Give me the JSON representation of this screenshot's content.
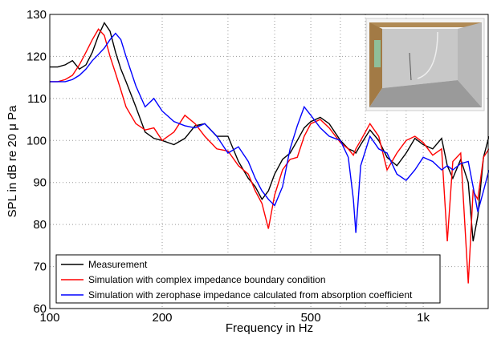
{
  "chart_data": {
    "type": "line",
    "xlabel": "Frequency in Hz",
    "ylabel": "SPL in dB re 20 μ Pa",
    "log_x": true,
    "grid": true,
    "legend": "lower left",
    "xlim": [
      100,
      1500
    ],
    "ylim": [
      60,
      130
    ],
    "xticks": [
      100,
      200,
      500,
      {
        "value": 1000,
        "label": "1k"
      }
    ],
    "xgrid": [
      300,
      400,
      600,
      700,
      800,
      900
    ],
    "yticks": [
      60,
      70,
      80,
      90,
      100,
      110,
      120,
      130
    ],
    "x": [
      100,
      105,
      110,
      115,
      120,
      125,
      130,
      135,
      140,
      145,
      150,
      155,
      160,
      170,
      180,
      190,
      200,
      215,
      230,
      245,
      260,
      280,
      300,
      320,
      340,
      355,
      370,
      385,
      400,
      420,
      440,
      460,
      480,
      500,
      530,
      560,
      600,
      630,
      650,
      660,
      680,
      720,
      760,
      800,
      850,
      900,
      950,
      1000,
      1060,
      1120,
      1160,
      1200,
      1260,
      1320,
      1360,
      1400,
      1450,
      1500
    ],
    "series": [
      {
        "name": "Measurement",
        "color": "#000000",
        "values": [
          117.5,
          117.5,
          118,
          119,
          117,
          118,
          121,
          125,
          128,
          126,
          121,
          117,
          114,
          108,
          102,
          100.5,
          100,
          99,
          100.5,
          103.5,
          104,
          101,
          101,
          95,
          91,
          89,
          86,
          88,
          92,
          95.5,
          97,
          100,
          103,
          104.5,
          105.5,
          104,
          100,
          98,
          97.5,
          97,
          99,
          102.5,
          100,
          96,
          94,
          97,
          100.5,
          99,
          98,
          100.5,
          94,
          91,
          95.5,
          90,
          76,
          82,
          96,
          101
        ]
      },
      {
        "name": "Simulation with complex impedance boundary condition",
        "color": "#ff0000",
        "values": [
          114,
          114,
          114.5,
          115.5,
          118,
          121,
          124,
          126.5,
          125,
          120,
          116,
          112,
          108,
          104,
          102.5,
          103,
          100,
          102,
          106,
          104,
          101,
          98,
          97.5,
          94,
          92,
          88,
          85,
          79,
          87,
          93,
          95.5,
          96,
          101,
          104,
          105,
          103,
          99.5,
          98,
          96.5,
          98,
          100,
          104,
          101,
          93,
          97,
          100,
          101,
          99.5,
          96.5,
          98,
          76,
          95,
          97,
          66,
          88,
          86,
          96,
          98
        ]
      },
      {
        "name": "Simulation with zerophase impedance calculated from absorption coefficient",
        "color": "#0000ff",
        "values": [
          114,
          114,
          114,
          114.5,
          115.5,
          117,
          119,
          120.5,
          122,
          124,
          125.5,
          124,
          120,
          113,
          108,
          110,
          107,
          104.5,
          103.5,
          103,
          104,
          101,
          97,
          98.5,
          95,
          91,
          88,
          86,
          84.5,
          89,
          98,
          103.5,
          108,
          106,
          103,
          101,
          100,
          96,
          86,
          78,
          94,
          101,
          98,
          97,
          92,
          90.5,
          93,
          96,
          95,
          93,
          94,
          93,
          94.5,
          95,
          89,
          83,
          88,
          93
        ]
      }
    ]
  }
}
